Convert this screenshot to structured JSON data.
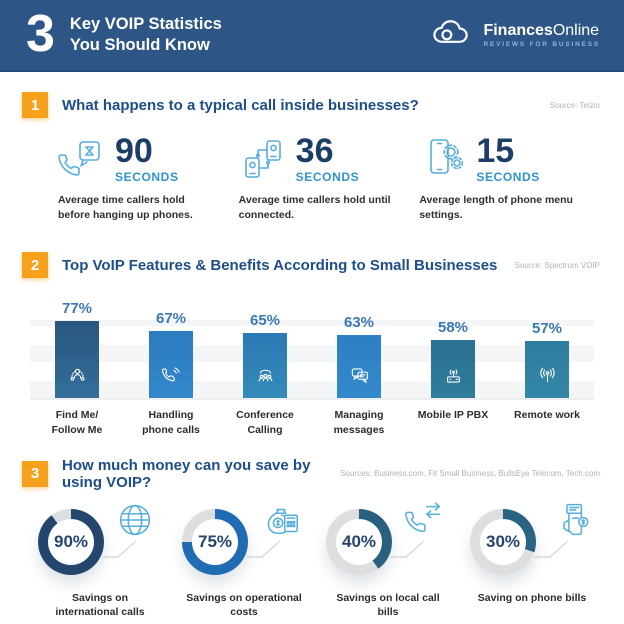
{
  "header": {
    "big_number": "3",
    "title_line1": "Key VOIP Statistics",
    "title_line2": "You Should Know",
    "brand_bold": "Finances",
    "brand_light": "Online",
    "brand_tagline": "REVIEWS FOR BUSINESS"
  },
  "sections": {
    "s1": {
      "number": "1",
      "title": "What happens to a typical call inside businesses?",
      "source": "Source: Telzio",
      "stats": [
        {
          "value": "90",
          "unit": "SECONDS",
          "caption": "Average time callers hold before hanging up phones.",
          "icon": "phone-hourglass-icon"
        },
        {
          "value": "36",
          "unit": "SECONDS",
          "caption": "Average time callers hold until connected.",
          "icon": "connected-phones-icon"
        },
        {
          "value": "15",
          "unit": "SECONDS",
          "caption": "Average length of phone menu settings.",
          "icon": "phone-gears-icon"
        }
      ]
    },
    "s2": {
      "number": "2",
      "title": "Top VoIP Features & Benefits According to Small Businesses",
      "source": "Source: Spectrum VOIP"
    },
    "s3": {
      "number": "3",
      "title": "How much money can you save by using VOIP?",
      "source": "Sources: Business.com, Fit Small Business, BullsEye Telecom, Tech.com"
    }
  },
  "chart_data": [
    {
      "type": "bar",
      "title": "Top VoIP Features & Benefits According to Small Businesses",
      "source": "Source: Spectrum VOIP",
      "categories": [
        "Find Me/ Follow Me",
        "Handling phone calls",
        "Conference Calling",
        "Managing messages",
        "Mobile IP PBX",
        "Remote work"
      ],
      "values": [
        77,
        67,
        65,
        63,
        58,
        57
      ],
      "unit": "%",
      "ylim": [
        0,
        100
      ],
      "grid": "horizontal-bands",
      "value_labels": "above-bars",
      "icons": [
        "find-me-icon",
        "handling-calls-icon",
        "conference-calling-icon",
        "managing-messages-icon",
        "mobile-ip-pbx-icon",
        "remote-work-icon"
      ]
    },
    {
      "type": "pie",
      "subtype": "donut",
      "title": "How much money can you save by using VOIP?",
      "source": "Sources: Business.com, Fit Small Business, BullsEye Telecom, Tech.com",
      "categories": [
        "Savings on international calls",
        "Savings on operational costs",
        "Savings on local call bills",
        "Saving on phone bills"
      ],
      "values": [
        90,
        75,
        40,
        30
      ],
      "unit": "%",
      "start_angle": "top-clockwise",
      "icons": [
        "globe-icon",
        "money-savings-icon",
        "call-transfer-icon",
        "phone-bill-icon"
      ]
    }
  ],
  "colors": {
    "header_bg": "#2d5586",
    "accent_orange": "#f7a01b",
    "title_blue": "#1d4e8a",
    "number_navy": "#1c3e66",
    "unit_blue": "#2e94cf",
    "icon_blue": "#56aedd",
    "bar_value_blue": "#3a78b6",
    "source_gray": "#aab3bd",
    "bar_colors": [
      [
        "#28567e",
        "#336f9b"
      ],
      [
        "#2c7cc0",
        "#3187c9"
      ],
      [
        "#2c79b4",
        "#338bb9"
      ],
      [
        "#2e7fc4",
        "#3389cb"
      ],
      [
        "#2a7092",
        "#2f7d9d"
      ],
      [
        "#2e7b9e",
        "#3487a8"
      ]
    ],
    "donut_colors": [
      "#24456d",
      "#1f6cb2",
      "#2a607f",
      "#2b6384"
    ],
    "donut_track": "#dcdee0"
  }
}
